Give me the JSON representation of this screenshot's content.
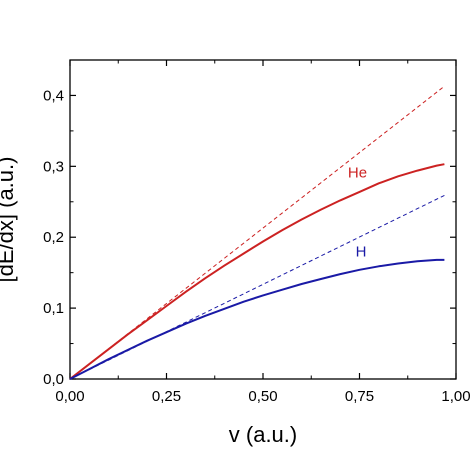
{
  "chart_data": {
    "type": "line",
    "xlabel": "v (a.u.)",
    "ylabel": "[dE/dx]  (a.u.)",
    "xlim": [
      0,
      1.0
    ],
    "ylim": [
      0,
      0.45
    ],
    "x_ticks": [
      0,
      0.25,
      0.5,
      0.75,
      1.0
    ],
    "x_tick_labels": [
      "0,00",
      "0,25",
      "0,50",
      "0,75",
      "1,00"
    ],
    "y_ticks": [
      0,
      0.1,
      0.2,
      0.3,
      0.4
    ],
    "y_tick_labels": [
      "0,0",
      "0,1",
      "0,2",
      "0,3",
      "0,4"
    ],
    "grid": false,
    "series": [
      {
        "name": "He",
        "color": "#cc2222",
        "style": "solid",
        "x": [
          0,
          0.05,
          0.1,
          0.15,
          0.2,
          0.25,
          0.3,
          0.35,
          0.4,
          0.45,
          0.5,
          0.55,
          0.6,
          0.65,
          0.7,
          0.75,
          0.8,
          0.85,
          0.9,
          0.95,
          0.97
        ],
        "y": [
          0,
          0.021,
          0.042,
          0.063,
          0.083,
          0.103,
          0.123,
          0.142,
          0.16,
          0.177,
          0.194,
          0.21,
          0.225,
          0.239,
          0.252,
          0.264,
          0.276,
          0.286,
          0.294,
          0.301,
          0.303
        ]
      },
      {
        "name": "",
        "color": "#cc2222",
        "style": "dashed",
        "x": [
          0,
          0.97
        ],
        "y": [
          0,
          0.413
        ]
      },
      {
        "name": "H",
        "color": "#1a1aa6",
        "style": "solid",
        "x": [
          0,
          0.05,
          0.1,
          0.15,
          0.2,
          0.25,
          0.3,
          0.35,
          0.4,
          0.45,
          0.5,
          0.55,
          0.6,
          0.65,
          0.7,
          0.75,
          0.8,
          0.85,
          0.9,
          0.95,
          0.97
        ],
        "y": [
          0,
          0.014,
          0.028,
          0.041,
          0.054,
          0.066,
          0.078,
          0.089,
          0.099,
          0.109,
          0.118,
          0.126,
          0.134,
          0.141,
          0.148,
          0.154,
          0.159,
          0.163,
          0.166,
          0.168,
          0.168
        ]
      },
      {
        "name": "",
        "color": "#1a1aa6",
        "style": "dashed",
        "x": [
          0,
          0.97
        ],
        "y": [
          0,
          0.259
        ]
      }
    ],
    "annotations": [
      {
        "text": "He",
        "x": 0.72,
        "y": 0.284,
        "color": "#cc2222"
      },
      {
        "text": "H",
        "x": 0.74,
        "y": 0.173,
        "color": "#1a1aa6"
      }
    ]
  }
}
